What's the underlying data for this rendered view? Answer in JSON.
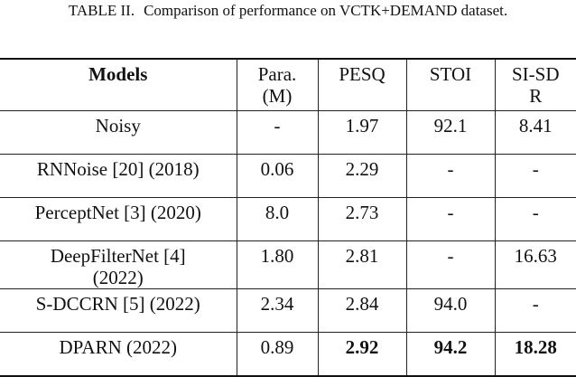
{
  "caption": {
    "label": "TABLE II.",
    "text": "Comparison of performance on VCTK+DEMAND dataset."
  },
  "table": {
    "header": [
      "Models",
      "Para. (M)",
      "PESQ",
      "STOI",
      "SI-SDR"
    ],
    "rows": [
      [
        "Noisy",
        "-",
        "1.97",
        "92.1",
        "8.41"
      ],
      [
        "RNNoise [20] (2018)",
        "0.06",
        "2.29",
        "-",
        "-"
      ],
      [
        "PerceptNet [3] (2020)",
        "8.0",
        "2.73",
        "-",
        "-"
      ],
      [
        "DeepFilterNet [4] (2022)",
        "1.80",
        "2.81",
        "-",
        "16.63"
      ],
      [
        "S-DCCRN [5] (2022)",
        "2.34",
        "2.84",
        "94.0",
        "-"
      ],
      [
        "DPARN (2022)",
        "0.89",
        "2.92",
        "94.2",
        "18.28"
      ]
    ]
  }
}
